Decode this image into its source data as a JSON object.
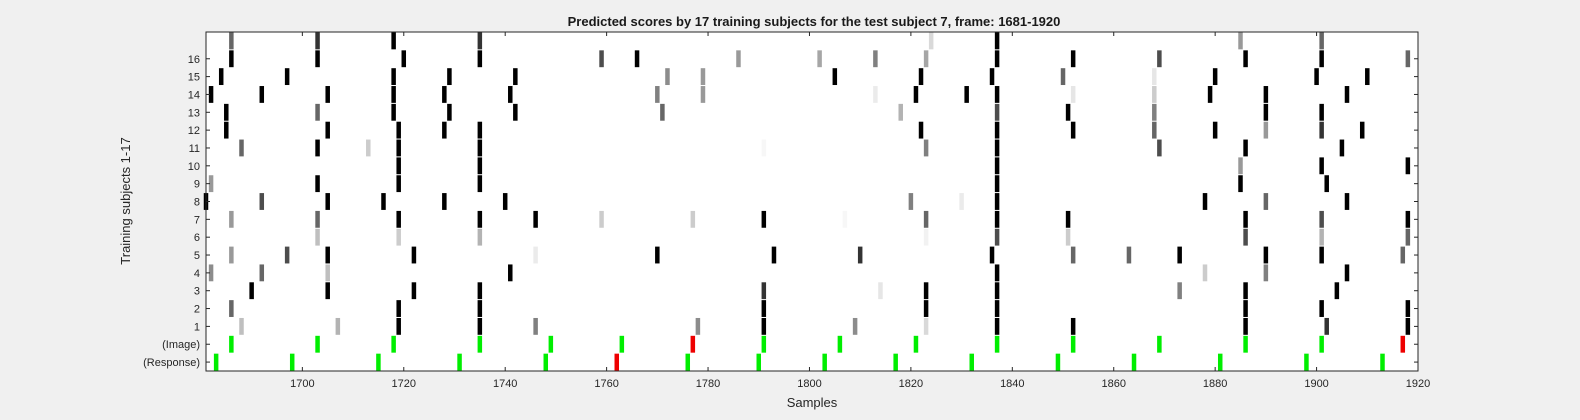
{
  "chart_data": {
    "type": "heatmap",
    "title": "Predicted scores by 17 training subjects for the test subject 7, frame: 1681-1920",
    "xlabel": "Samples",
    "ylabel": "Training subjects 1-17",
    "xlim": [
      1681,
      1920
    ],
    "xticks": [
      1700,
      1720,
      1740,
      1760,
      1780,
      1800,
      1820,
      1840,
      1860,
      1880,
      1900,
      1920
    ],
    "xtick_labels": [
      "1700",
      "1720",
      "1740",
      "1760",
      "1780",
      "1800",
      "1820",
      "1840",
      "1860",
      "1880",
      "1900",
      "1920"
    ],
    "rows": [
      "(Response)",
      "(Image)",
      "1",
      "2",
      "3",
      "4",
      "5",
      "6",
      "7",
      "8",
      "9",
      "10",
      "11",
      "12",
      "13",
      "14",
      "15",
      "16",
      ""
    ],
    "ytick_labels": [
      "(Response)",
      "(Image)",
      "1",
      "2",
      "3",
      "4",
      "5",
      "6",
      "7",
      "8",
      "9",
      "10",
      "11",
      "12",
      "13",
      "14",
      "15",
      "16"
    ],
    "colors": {
      "high": "#000000",
      "green": "#00ee00",
      "red": "#ee0000",
      "background": "#ffffff",
      "figure": "#f0f0f0"
    },
    "response_marks": [
      {
        "x": 1683,
        "c": "green"
      },
      {
        "x": 1698,
        "c": "green"
      },
      {
        "x": 1715,
        "c": "green"
      },
      {
        "x": 1731,
        "c": "green"
      },
      {
        "x": 1748,
        "c": "green"
      },
      {
        "x": 1762,
        "c": "red"
      },
      {
        "x": 1776,
        "c": "green"
      },
      {
        "x": 1790,
        "c": "green"
      },
      {
        "x": 1803,
        "c": "green"
      },
      {
        "x": 1817,
        "c": "green"
      },
      {
        "x": 1832,
        "c": "green"
      },
      {
        "x": 1849,
        "c": "green"
      },
      {
        "x": 1864,
        "c": "green"
      },
      {
        "x": 1881,
        "c": "green"
      },
      {
        "x": 1898,
        "c": "green"
      },
      {
        "x": 1913,
        "c": "green"
      }
    ],
    "image_marks": [
      {
        "x": 1686,
        "c": "green"
      },
      {
        "x": 1703,
        "c": "green"
      },
      {
        "x": 1718,
        "c": "green"
      },
      {
        "x": 1735,
        "c": "green"
      },
      {
        "x": 1749,
        "c": "green"
      },
      {
        "x": 1763,
        "c": "green"
      },
      {
        "x": 1777,
        "c": "red"
      },
      {
        "x": 1791,
        "c": "green"
      },
      {
        "x": 1806,
        "c": "green"
      },
      {
        "x": 1821,
        "c": "green"
      },
      {
        "x": 1837,
        "c": "green"
      },
      {
        "x": 1852,
        "c": "green"
      },
      {
        "x": 1869,
        "c": "green"
      },
      {
        "x": 1886,
        "c": "green"
      },
      {
        "x": 1901,
        "c": "green"
      },
      {
        "x": 1917,
        "c": "red"
      }
    ],
    "subject_cells": {
      "1": [
        [
          1688,
          0.25
        ],
        [
          1707,
          0.3
        ],
        [
          1719,
          1
        ],
        [
          1735,
          1
        ],
        [
          1746,
          0.5
        ],
        [
          1778,
          0.45
        ],
        [
          1791,
          1
        ],
        [
          1809,
          0.45
        ],
        [
          1823,
          0.15
        ],
        [
          1837,
          1
        ],
        [
          1852,
          1
        ],
        [
          1886,
          1
        ],
        [
          1902,
          0.8
        ],
        [
          1918,
          1
        ]
      ],
      "2": [
        [
          1686,
          0.6
        ],
        [
          1719,
          1
        ],
        [
          1735,
          1
        ],
        [
          1791,
          1
        ],
        [
          1823,
          1
        ],
        [
          1837,
          1
        ],
        [
          1886,
          1
        ],
        [
          1901,
          1
        ],
        [
          1918,
          1
        ]
      ],
      "3": [
        [
          1690,
          1
        ],
        [
          1705,
          1
        ],
        [
          1722,
          1
        ],
        [
          1735,
          1
        ],
        [
          1791,
          0.8
        ],
        [
          1814,
          0.1
        ],
        [
          1823,
          1
        ],
        [
          1837,
          1
        ],
        [
          1873,
          0.5
        ],
        [
          1886,
          1
        ],
        [
          1904,
          1
        ]
      ],
      "4": [
        [
          1682,
          0.45
        ],
        [
          1692,
          0.6
        ],
        [
          1705,
          0.25
        ],
        [
          1741,
          1
        ],
        [
          1837,
          1
        ],
        [
          1878,
          0.2
        ],
        [
          1890,
          0.5
        ],
        [
          1906,
          1
        ]
      ],
      "5": [
        [
          1686,
          0.4
        ],
        [
          1697,
          0.7
        ],
        [
          1705,
          1
        ],
        [
          1722,
          1
        ],
        [
          1746,
          0.08
        ],
        [
          1770,
          1
        ],
        [
          1793,
          1
        ],
        [
          1810,
          0.8
        ],
        [
          1836,
          1
        ],
        [
          1852,
          0.6
        ],
        [
          1863,
          0.6
        ],
        [
          1873,
          1
        ],
        [
          1890,
          1
        ],
        [
          1901,
          1
        ],
        [
          1917,
          0.6
        ]
      ],
      "6": [
        [
          1703,
          0.25
        ],
        [
          1719,
          0.2
        ],
        [
          1735,
          0.3
        ],
        [
          1823,
          0.05
        ],
        [
          1837,
          0.7
        ],
        [
          1851,
          0.2
        ],
        [
          1886,
          0.7
        ],
        [
          1901,
          0.3
        ],
        [
          1918,
          0.6
        ]
      ],
      "7": [
        [
          1686,
          0.4
        ],
        [
          1703,
          0.6
        ],
        [
          1719,
          1
        ],
        [
          1735,
          1
        ],
        [
          1746,
          1
        ],
        [
          1759,
          0.2
        ],
        [
          1777,
          0.2
        ],
        [
          1791,
          1
        ],
        [
          1807,
          0.03
        ],
        [
          1823,
          0.6
        ],
        [
          1837,
          1
        ],
        [
          1851,
          1
        ],
        [
          1886,
          1
        ],
        [
          1901,
          0.7
        ],
        [
          1918,
          1
        ]
      ],
      "8": [
        [
          1681,
          1
        ],
        [
          1692,
          0.7
        ],
        [
          1705,
          1
        ],
        [
          1716,
          1
        ],
        [
          1728,
          1
        ],
        [
          1740,
          1
        ],
        [
          1820,
          0.5
        ],
        [
          1830,
          0.08
        ],
        [
          1837,
          1
        ],
        [
          1878,
          1
        ],
        [
          1890,
          0.6
        ],
        [
          1906,
          1
        ]
      ],
      "9": [
        [
          1682,
          0.4
        ],
        [
          1703,
          1
        ],
        [
          1719,
          1
        ],
        [
          1735,
          1
        ],
        [
          1837,
          1
        ],
        [
          1885,
          1
        ],
        [
          1902,
          1
        ]
      ],
      "10": [
        [
          1719,
          1
        ],
        [
          1735,
          1
        ],
        [
          1837,
          1
        ],
        [
          1885,
          0.4
        ],
        [
          1901,
          1
        ],
        [
          1918,
          1
        ]
      ],
      "11": [
        [
          1688,
          0.6
        ],
        [
          1703,
          1
        ],
        [
          1713,
          0.2
        ],
        [
          1719,
          1
        ],
        [
          1735,
          1
        ],
        [
          1791,
          0.03
        ],
        [
          1823,
          0.5
        ],
        [
          1837,
          1
        ],
        [
          1869,
          0.7
        ],
        [
          1886,
          1
        ],
        [
          1905,
          1
        ]
      ],
      "12": [
        [
          1685,
          1
        ],
        [
          1705,
          1
        ],
        [
          1719,
          1
        ],
        [
          1728,
          1
        ],
        [
          1735,
          1
        ],
        [
          1822,
          1
        ],
        [
          1837,
          1
        ],
        [
          1852,
          1
        ],
        [
          1868,
          0.6
        ],
        [
          1880,
          1
        ],
        [
          1890,
          0.4
        ],
        [
          1901,
          0.8
        ],
        [
          1909,
          1
        ]
      ],
      "13": [
        [
          1685,
          1
        ],
        [
          1703,
          0.6
        ],
        [
          1718,
          1
        ],
        [
          1729,
          1
        ],
        [
          1742,
          1
        ],
        [
          1771,
          0.6
        ],
        [
          1818,
          0.3
        ],
        [
          1837,
          0.7
        ],
        [
          1851,
          1
        ],
        [
          1868,
          0.5
        ],
        [
          1890,
          1
        ],
        [
          1901,
          1
        ]
      ],
      "14": [
        [
          1682,
          1
        ],
        [
          1692,
          1
        ],
        [
          1705,
          1
        ],
        [
          1718,
          1
        ],
        [
          1728,
          1
        ],
        [
          1741,
          1
        ],
        [
          1770,
          0.5
        ],
        [
          1779,
          0.4
        ],
        [
          1813,
          0.08
        ],
        [
          1821,
          1
        ],
        [
          1831,
          1
        ],
        [
          1837,
          1
        ],
        [
          1852,
          0.1
        ],
        [
          1868,
          0.2
        ],
        [
          1879,
          1
        ],
        [
          1890,
          1
        ],
        [
          1906,
          1
        ]
      ],
      "15": [
        [
          1684,
          1
        ],
        [
          1697,
          1
        ],
        [
          1718,
          1
        ],
        [
          1729,
          1
        ],
        [
          1742,
          1
        ],
        [
          1772,
          0.45
        ],
        [
          1779,
          0.4
        ],
        [
          1805,
          1
        ],
        [
          1822,
          1
        ],
        [
          1836,
          1
        ],
        [
          1850,
          0.6
        ],
        [
          1868,
          0.1
        ],
        [
          1880,
          1
        ],
        [
          1900,
          1
        ],
        [
          1910,
          1
        ]
      ],
      "16": [
        [
          1686,
          1
        ],
        [
          1703,
          1
        ],
        [
          1720,
          1
        ],
        [
          1735,
          1
        ],
        [
          1759,
          0.7
        ],
        [
          1766,
          1
        ],
        [
          1786,
          0.4
        ],
        [
          1802,
          0.35
        ],
        [
          1813,
          0.5
        ],
        [
          1823,
          0.35
        ],
        [
          1837,
          1
        ],
        [
          1852,
          1
        ],
        [
          1869,
          0.7
        ],
        [
          1886,
          1
        ],
        [
          1901,
          1
        ],
        [
          1918,
          0.6
        ]
      ],
      "": [
        [
          1686,
          0.6
        ],
        [
          1703,
          0.8
        ],
        [
          1718,
          1
        ],
        [
          1735,
          0.8
        ],
        [
          1824,
          0.15
        ],
        [
          1837,
          1
        ],
        [
          1885,
          0.4
        ],
        [
          1901,
          0.6
        ]
      ]
    }
  }
}
